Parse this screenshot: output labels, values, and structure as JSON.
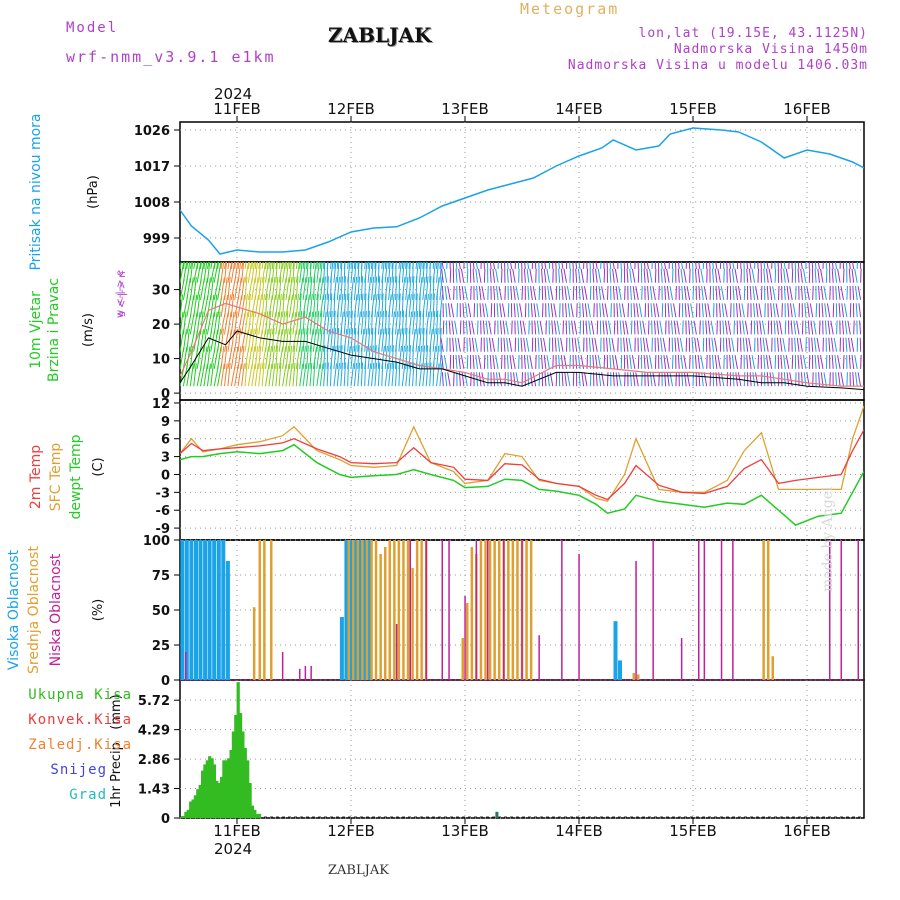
{
  "header": {
    "model_label": "Model",
    "model_name": "wrf-nmm_v3.9.1 e1km",
    "station": "ZABLJAK",
    "meteogram": "Meteogram",
    "coords": "lon,lat (19.15E, 43.1125N)",
    "elevation": "Nadmorska Visina 1450m",
    "model_elevation": "Nadmorska Visina u modelu 1406.03m",
    "year_top": "2024",
    "year_bottom": "2024",
    "footer_station": "ZABLJAK",
    "watermark": "made by Angel"
  },
  "colors": {
    "pressure": "#1aa3e8",
    "t2m": "#f03c3c",
    "sfc": "#e0a030",
    "dewpt": "#22cc22",
    "wind_speed": "#000000",
    "gust": "#e87878",
    "cloud_high": "#1aa3e8",
    "cloud_mid": "#e0a030",
    "cloud_low": "#c0209a",
    "precip_total": "#33bb22",
    "precip_conv": "#f03c3c",
    "precip_frz": "#f08030",
    "precip_snow": "#4444dd",
    "precip_grad": "#22bbbb"
  },
  "legend": {
    "precip": [
      "Ukupna Kisa",
      "Konvek.Kisa",
      "Zaledj.Kisa",
      "Snijeg",
      "Grad"
    ]
  },
  "chart_data": [
    {
      "type": "line",
      "panel": "pressure",
      "ylabel": "Pritisak na nivou mora",
      "unit": "(hPa)",
      "x_ticks": [
        "11FEB",
        "12FEB",
        "13FEB",
        "14FEB",
        "15FEB",
        "16FEB"
      ],
      "x_range_days": [
        10.5,
        16.5
      ],
      "ylim": [
        993,
        1028
      ],
      "y_ticks": [
        "999",
        "1008",
        "1017",
        "1026"
      ],
      "x": [
        10.5,
        10.6,
        10.75,
        10.85,
        11.0,
        11.2,
        11.4,
        11.6,
        11.8,
        12.0,
        12.2,
        12.4,
        12.6,
        12.8,
        13.0,
        13.2,
        13.4,
        13.6,
        13.8,
        14.0,
        14.2,
        14.3,
        14.5,
        14.7,
        14.8,
        15.0,
        15.25,
        15.4,
        15.6,
        15.8,
        16.0,
        16.2,
        16.4,
        16.5
      ],
      "series": [
        {
          "values": [
            1006,
            1002,
            998.5,
            995,
            996,
            995.5,
            995.5,
            996,
            998,
            1000.5,
            1001.5,
            1001.8,
            1004,
            1007,
            1009,
            1011,
            1012.5,
            1014,
            1017,
            1019.5,
            1021.5,
            1023.5,
            1021,
            1022,
            1025,
            1026.5,
            1026,
            1025.5,
            1023,
            1019,
            1021,
            1020,
            1018,
            1016.5
          ]
        }
      ]
    },
    {
      "type": "line",
      "panel": "wind",
      "ylabel": "10m Vjetar Brzina i Pravac",
      "unit": "(m/s)",
      "direction_legend": "w <-|-> e",
      "direction_legend_2": "s <-|-> n",
      "ylim": [
        -2,
        38
      ],
      "y_ticks": [
        "0",
        "10",
        "20",
        "30"
      ],
      "x": [
        10.5,
        10.6,
        10.75,
        10.9,
        11.0,
        11.2,
        11.4,
        11.6,
        11.8,
        12.0,
        12.2,
        12.4,
        12.6,
        12.8,
        13.0,
        13.2,
        13.35,
        13.5,
        13.8,
        14.0,
        14.3,
        14.6,
        15.0,
        15.4,
        15.6,
        15.8,
        16.0,
        16.3,
        16.5
      ],
      "series": [
        {
          "name": "speed",
          "values": [
            3,
            8,
            16,
            14,
            18,
            16,
            15,
            15,
            13,
            11,
            10,
            9,
            7,
            7,
            5,
            3,
            3,
            2,
            6,
            6,
            5,
            5,
            5,
            4,
            3,
            3,
            2,
            1.5,
            1
          ]
        },
        {
          "name": "gust",
          "values": [
            5,
            12,
            24,
            26,
            25,
            23,
            20,
            22,
            18,
            16,
            12,
            10,
            8,
            7,
            6,
            4,
            4,
            3,
            8,
            8,
            7,
            6,
            6,
            5,
            5,
            4,
            3,
            2,
            2
          ]
        }
      ]
    },
    {
      "type": "line",
      "panel": "temperature",
      "ylabels": [
        "2m Temp",
        "SFC Temp",
        "dewpt Temp"
      ],
      "unit": "(C)",
      "ylim": [
        -11,
        12.5
      ],
      "y_ticks": [
        "12",
        "9",
        "6",
        "3",
        "0",
        "-3",
        "-6",
        "-9"
      ],
      "x": [
        10.5,
        10.6,
        10.7,
        10.85,
        11.0,
        11.2,
        11.4,
        11.5,
        11.7,
        11.9,
        12.0,
        12.2,
        12.4,
        12.55,
        12.7,
        12.9,
        13.0,
        13.2,
        13.35,
        13.5,
        13.65,
        13.8,
        14.0,
        14.15,
        14.25,
        14.4,
        14.5,
        14.7,
        14.9,
        15.1,
        15.3,
        15.45,
        15.6,
        15.75,
        15.9,
        16.1,
        16.3,
        16.4,
        16.5
      ],
      "series": [
        {
          "name": "2m Temp",
          "values": [
            3.5,
            5.2,
            4.0,
            4.3,
            4.5,
            4.8,
            5.3,
            6.0,
            4.3,
            3.0,
            2.0,
            1.8,
            2.0,
            4.5,
            2.0,
            1.2,
            -0.8,
            -1.0,
            1.8,
            1.6,
            -0.8,
            -1.5,
            -2.0,
            -3.5,
            -4.2,
            -1.5,
            1.5,
            -1.8,
            -3.0,
            -3.2,
            -2.0,
            1.0,
            2.5,
            -1.5,
            -1.0,
            -0.5,
            0.0,
            4.0,
            7.5
          ]
        },
        {
          "name": "SFC Temp",
          "values": [
            3.5,
            6.0,
            3.8,
            4.3,
            5.0,
            5.5,
            6.5,
            8.0,
            4.0,
            2.5,
            1.5,
            1.2,
            1.5,
            8.0,
            2.0,
            0.5,
            -1.5,
            -1.0,
            3.5,
            3.0,
            -1.0,
            -1.5,
            -2.0,
            -4.0,
            -4.5,
            0.0,
            6.0,
            -2.5,
            -3.0,
            -3.0,
            -1.0,
            4.0,
            7.0,
            -2.5,
            -2.5,
            -2.5,
            -2.5,
            6.0,
            11.5
          ]
        },
        {
          "name": "dewpt Temp",
          "values": [
            2.5,
            3.0,
            3.0,
            3.5,
            3.8,
            3.5,
            4.0,
            5.0,
            2.0,
            0.0,
            -0.5,
            -0.2,
            0.0,
            0.8,
            0.0,
            -1.0,
            -2.2,
            -2.0,
            -0.8,
            -1.0,
            -2.5,
            -2.8,
            -3.5,
            -5.0,
            -6.5,
            -5.8,
            -3.5,
            -4.5,
            -5.0,
            -5.5,
            -4.8,
            -5.0,
            -3.5,
            -6.0,
            -8.5,
            -7.0,
            -6.5,
            -3.0,
            0.5
          ]
        }
      ]
    },
    {
      "type": "bar",
      "panel": "clouds",
      "ylabels": [
        "Visoka Oblacnost",
        "Srednja Oblacnost",
        "Niska Oblacnost"
      ],
      "unit": "(%)",
      "ylim": [
        0,
        100
      ],
      "y_ticks": [
        "100",
        "75",
        "50",
        "25",
        "0"
      ],
      "series": [
        {
          "name": "Visoka Oblacnost",
          "x": [
            10.52,
            10.56,
            10.6,
            10.64,
            10.68,
            10.72,
            10.76,
            10.8,
            10.84,
            10.88,
            10.92,
            11.92,
            11.96,
            12.0,
            12.04,
            12.08,
            12.12,
            12.16,
            14.32,
            14.36
          ],
          "values": [
            100,
            100,
            100,
            100,
            100,
            100,
            100,
            100,
            100,
            100,
            85,
            45,
            100,
            100,
            100,
            100,
            100,
            100,
            42,
            14
          ]
        },
        {
          "name": "Srednja Oblacnost",
          "x": [
            11.15,
            11.2,
            11.24,
            11.3,
            11.98,
            12.02,
            12.06,
            12.1,
            12.14,
            12.18,
            12.22,
            12.26,
            12.3,
            12.34,
            12.38,
            12.42,
            12.46,
            12.5,
            12.54,
            12.58,
            12.62,
            12.66,
            12.98,
            13.02,
            13.06,
            13.1,
            13.14,
            13.18,
            13.22,
            13.26,
            13.3,
            13.34,
            13.38,
            13.42,
            13.46,
            13.5,
            13.54,
            13.58,
            14.48,
            14.52,
            15.62,
            15.66,
            15.7
          ],
          "values": [
            52,
            100,
            100,
            100,
            100,
            100,
            100,
            100,
            100,
            100,
            100,
            90,
            95,
            100,
            100,
            100,
            100,
            100,
            80,
            100,
            100,
            100,
            30,
            55,
            95,
            90,
            100,
            100,
            100,
            100,
            100,
            100,
            100,
            100,
            100,
            100,
            100,
            100,
            5,
            4,
            100,
            100,
            17
          ]
        },
        {
          "name": "Niska Oblacnost",
          "x": [
            10.55,
            11.4,
            11.55,
            11.6,
            11.65,
            12.4,
            12.52,
            12.66,
            12.8,
            12.86,
            13.0,
            13.1,
            13.2,
            13.34,
            13.5,
            13.65,
            13.85,
            14.0,
            14.5,
            14.65,
            14.9,
            15.05,
            15.1,
            15.25,
            15.35,
            16.2,
            16.3,
            16.45
          ],
          "values": [
            20,
            20,
            8,
            10,
            10,
            40,
            100,
            100,
            100,
            100,
            60,
            100,
            100,
            100,
            100,
            32,
            100,
            90,
            85,
            100,
            30,
            100,
            100,
            100,
            100,
            100,
            100,
            100
          ]
        }
      ]
    },
    {
      "type": "bar",
      "panel": "precip",
      "ylabel": "1hr Precip",
      "unit": "(mm)",
      "ylim": [
        0,
        6.7
      ],
      "y_ticks": [
        "0",
        "1.43",
        "2.86",
        "4.29",
        "5.72"
      ],
      "x_ticks": [
        "11FEB",
        "12FEB",
        "13FEB",
        "14FEB",
        "15FEB",
        "16FEB"
      ],
      "x_start": 10.5,
      "x_step": 0.02083,
      "series": [
        {
          "name": "Ukupna Kisa",
          "values": [
            0.05,
            0.1,
            0.3,
            0.4,
            0.8,
            0.9,
            1.1,
            1.4,
            1.6,
            2.3,
            2.6,
            2.8,
            3.0,
            2.9,
            2.6,
            1.8,
            1.7,
            2.0,
            2.8,
            2.8,
            2.9,
            3.3,
            4.2,
            5.0,
            6.6,
            5.1,
            4.2,
            3.4,
            2.8,
            1.7,
            0.6,
            0.4,
            0.2,
            0.2
          ]
        },
        {
          "name": "Grad",
          "x": [
            13.28
          ],
          "values": [
            0.3
          ]
        }
      ]
    }
  ]
}
